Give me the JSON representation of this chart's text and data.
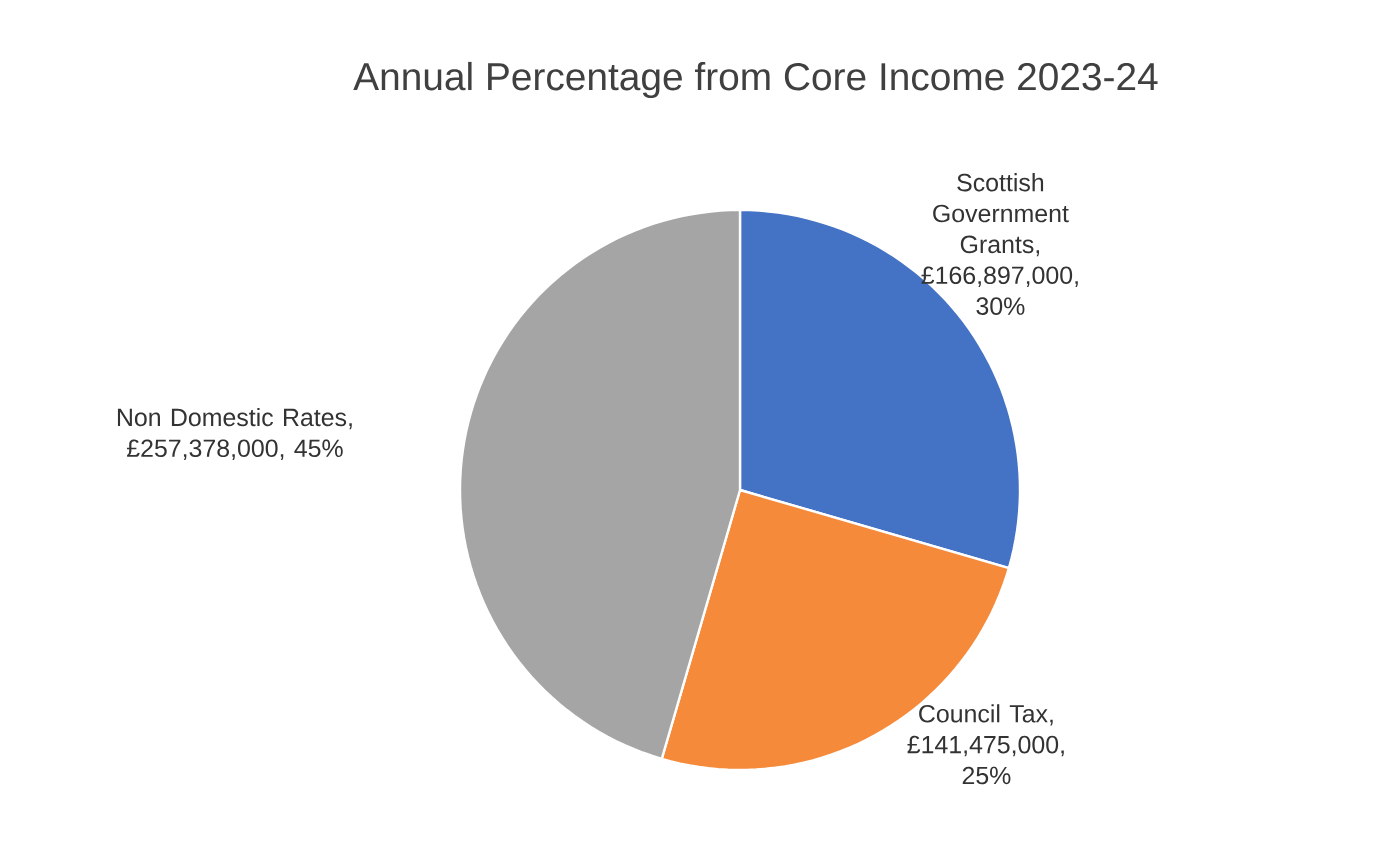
{
  "chart_data": {
    "type": "pie",
    "title": "Annual Percentage from Core Income 2023-24",
    "categories": [
      "Scottish Government Grants",
      "Council Tax",
      "Non Domestic Rates"
    ],
    "values": [
      166897000,
      141475000,
      257378000
    ],
    "value_labels": [
      ", £166,897,000, 30%",
      ", £141,475,000, 25%",
      ", £257,378,000, 45%"
    ],
    "colors": [
      "#4472c4",
      "#f58a3a",
      "#a5a5a5"
    ],
    "legend": false
  }
}
